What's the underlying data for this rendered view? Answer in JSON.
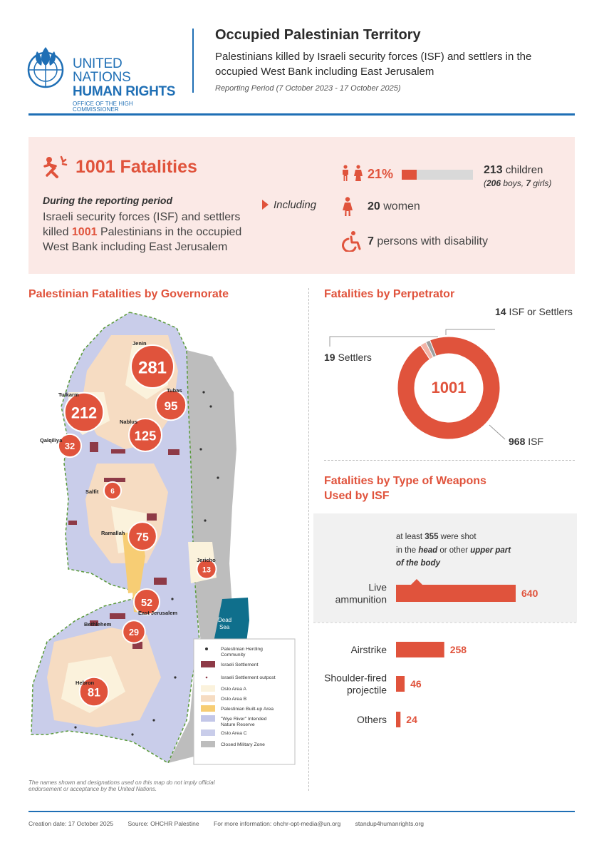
{
  "header": {
    "org_line1": "UNITED NATIONS",
    "org_line2": "HUMAN RIGHTS",
    "org_line3": "OFFICE OF THE HIGH COMMISSIONER",
    "title": "Occupied Palestinian Territory",
    "subtitle": "Palestinians killed by Israeli security forces (ISF) and settlers in the occupied West Bank including East Jerusalem",
    "period": "Reporting Period (7 October 2023 -  17 October 2025)"
  },
  "summary": {
    "headline": "1001 Fatalities",
    "during": "During the reporting period",
    "text_pre": "Israeli security forces (ISF) and settlers killed ",
    "text_num": "1001",
    "text_post": " Palestinians in the occupied West Bank including East Jerusalem",
    "including": "Including",
    "children_pct_label": "21%",
    "children_pct_value": 21,
    "children_num": "213",
    "children_word": " children",
    "boys_open": "(",
    "boys_num": "206",
    "boys_word": " boys, ",
    "girls_num": "7",
    "girls_word": " girls)",
    "women_num": "20",
    "women_word": " women",
    "disability_num": "7",
    "disability_word": " persons with disability"
  },
  "sections": {
    "governorate": "Palestinian Fatalities by Governorate",
    "perpetrator": "Fatalities by Perpetrator",
    "weapons_line1": "Fatalities by Type of Weapons",
    "weapons_line2": "Used by ISF"
  },
  "map": {
    "governorates": [
      {
        "name": "Jenin",
        "value": 281
      },
      {
        "name": "Tulkarm",
        "value": 212
      },
      {
        "name": "Tubas",
        "value": 95
      },
      {
        "name": "Nablus",
        "value": 125
      },
      {
        "name": "Qalqiliya",
        "value": 32
      },
      {
        "name": "Salfit",
        "value": 6
      },
      {
        "name": "Ramallah",
        "value": 75
      },
      {
        "name": "Jericho",
        "value": 13
      },
      {
        "name": "East Jerusalem",
        "value": 52
      },
      {
        "name": "Bethlehem",
        "value": 29
      },
      {
        "name": "Hebron",
        "value": 81
      }
    ],
    "dead_sea_line1": "Dead",
    "dead_sea_line2": "Sea",
    "legend": [
      {
        "label": "Palestinian Herding Community",
        "line1": "Palestinian Herding",
        "line2": "Community",
        "color": "#333333"
      },
      {
        "label": "Israeli Settlement",
        "line1": "Israeli Settlement",
        "line2": "",
        "color": "#8e3a47"
      },
      {
        "label": "Israeli Settlement outpost",
        "line1": "Israeli Settlement outpost",
        "line2": "",
        "color": "#8e3a47"
      },
      {
        "label": "Oslo Area A",
        "line1": "Oslo Area A",
        "line2": "",
        "color": "#fbf2dc"
      },
      {
        "label": "Oslo Area B",
        "line1": "Oslo Area B",
        "line2": "",
        "color": "#f6dcc2"
      },
      {
        "label": "Palestinian Built-up Area",
        "line1": "Palestinian Built-up Area",
        "line2": "",
        "color": "#f7cd74"
      },
      {
        "label": "\"Wye River\" Intended Nature Reserve",
        "line1": "\"Wye River\" Intended",
        "line2": "Nature Reserve",
        "color": "#c3c7e8"
      },
      {
        "label": "Oslo Area C",
        "line1": "Oslo Area C",
        "line2": "",
        "color": "#c9cdea"
      },
      {
        "label": "Closed Military Zone",
        "line1": "Closed Military Zone",
        "line2": "",
        "color": "#bdbdbd"
      }
    ],
    "disclaimer": "The names shown and designations used on this map do not imply official endorsement or acceptance by the United Nations."
  },
  "chart_data": [
    {
      "type": "pie",
      "title": "Fatalities by Perpetrator",
      "center_label": "1001",
      "categories": [
        "ISF",
        "Settlers",
        "ISF or Settlers"
      ],
      "values": [
        968,
        19,
        14
      ],
      "colors": [
        "#e0533c",
        "#f2b3a6",
        "#9e9e9e"
      ]
    },
    {
      "type": "bar",
      "title": "Fatalities by Type of Weapons Used by ISF",
      "categories": [
        "Live ammunition",
        "Airstrike",
        "Shoulder-fired projectile",
        "Others"
      ],
      "category_lines": [
        [
          "Live",
          "ammunition"
        ],
        [
          "Airstrike"
        ],
        [
          "Shoulder-fired",
          "projectile"
        ],
        [
          "Others"
        ]
      ],
      "values": [
        640,
        258,
        46,
        24
      ],
      "annotation": {
        "line1_pre": "at least ",
        "line1_num": "355",
        "line1_post": " were shot",
        "line2_pre": "in the ",
        "line2_em": "head",
        "line2_mid": " or other ",
        "line2_em2": "upper part",
        "line3": "of the body"
      }
    }
  ],
  "footer": {
    "created": "Creation date: 17 October 2025",
    "source": "Source: OHCHR Palestine",
    "info": "For more information: ohchr-opt-media@un.org",
    "site": "standup4humanrights.org"
  }
}
